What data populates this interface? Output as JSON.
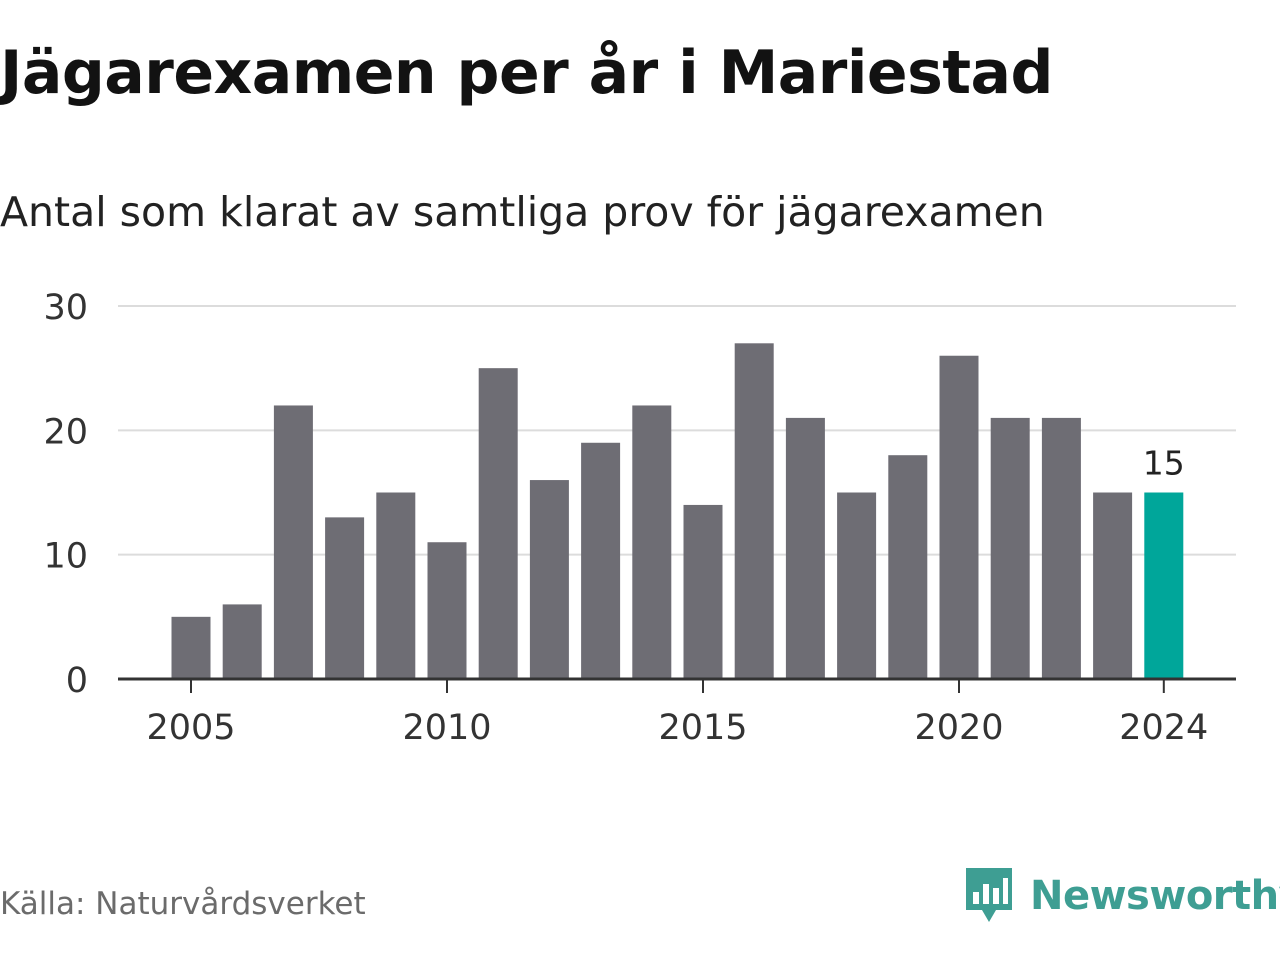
{
  "header": {
    "title": "Jägarexamen per år i Mariestad",
    "subtitle": "Antal som klarat av samtliga prov för jägarexamen"
  },
  "footer": {
    "source": "Källa: Naturvårdsverket",
    "brand": "Newsworthy",
    "brand_icon": "bar-chart-speech-bubble-icon"
  },
  "colors": {
    "bar": "#6e6d74",
    "highlight": "#00a69a",
    "grid": "#dcdcdc",
    "axis": "#333333",
    "brand": "#3e9e93"
  },
  "chart_data": {
    "type": "bar",
    "title": "Jägarexamen per år i Mariestad",
    "subtitle": "Antal som klarat av samtliga prov för jägarexamen",
    "xlabel": "",
    "ylabel": "",
    "categories": [
      "2005",
      "2006",
      "2007",
      "2008",
      "2009",
      "2010",
      "2011",
      "2012",
      "2013",
      "2014",
      "2015",
      "2016",
      "2017",
      "2018",
      "2019",
      "2020",
      "2021",
      "2022",
      "2023",
      "2024"
    ],
    "values": [
      5,
      6,
      22,
      13,
      15,
      11,
      25,
      16,
      19,
      22,
      14,
      27,
      21,
      15,
      18,
      26,
      21,
      21,
      15,
      15
    ],
    "x_tick_labels": [
      "2005",
      "2010",
      "2015",
      "2020",
      "2024"
    ],
    "y_ticks": [
      0,
      10,
      20,
      30
    ],
    "ylim": [
      0,
      30
    ],
    "grid": true,
    "highlight": {
      "category": "2024",
      "label": "15"
    }
  }
}
